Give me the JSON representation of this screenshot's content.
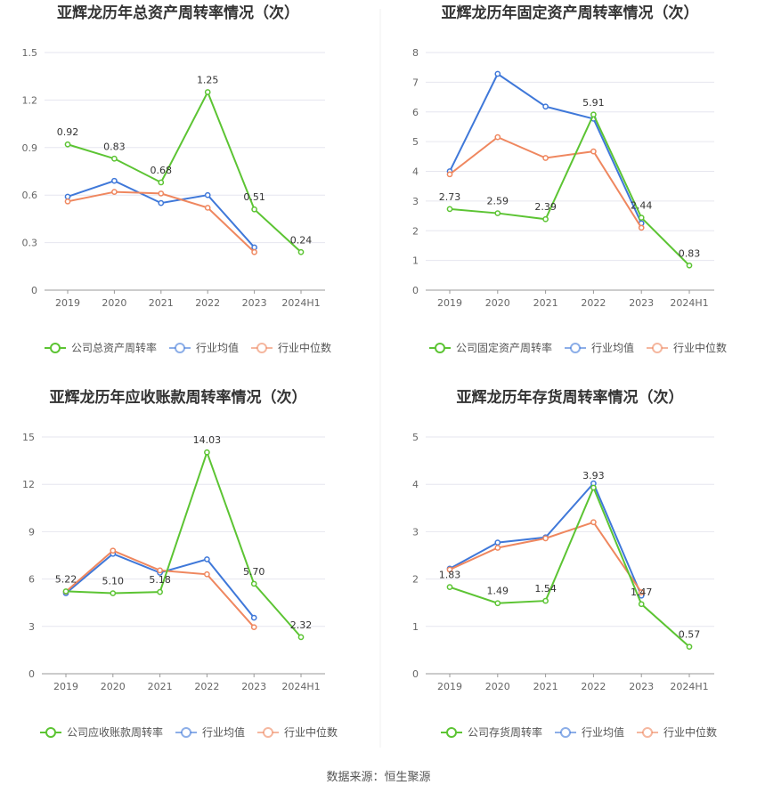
{
  "colors": {
    "company": "#5cc433",
    "avg": "#3f78d9",
    "median": "#ef875f",
    "grid": "#e6e6ef",
    "axis": "#999999"
  },
  "source_text": "数据来源：恒生聚源",
  "chart_data": [
    {
      "type": "line",
      "title": "亚辉龙历年总资产周转率情况（次）",
      "categories": [
        "2019",
        "2020",
        "2021",
        "2022",
        "2023",
        "2024H1"
      ],
      "ylim": [
        0,
        1.5
      ],
      "yticks": [
        "0",
        "0.3",
        "0.6",
        "0.9",
        "1.2",
        "1.5"
      ],
      "legend": [
        "公司总资产周转率",
        "行业均值",
        "行业中位数"
      ],
      "series": [
        {
          "name": "公司总资产周转率",
          "values": [
            0.92,
            0.83,
            0.68,
            1.25,
            0.51,
            0.24
          ],
          "labels": [
            "0.92",
            "0.83",
            "0.68",
            "1.25",
            "0.51",
            "0.24"
          ]
        },
        {
          "name": "行业均值",
          "values": [
            0.59,
            0.69,
            0.55,
            0.6,
            0.27,
            null
          ]
        },
        {
          "name": "行业中位数",
          "values": [
            0.56,
            0.62,
            0.61,
            0.52,
            0.24,
            null
          ]
        }
      ]
    },
    {
      "type": "line",
      "title": "亚辉龙历年固定资产周转率情况（次）",
      "categories": [
        "2019",
        "2020",
        "2021",
        "2022",
        "2023",
        "2024H1"
      ],
      "ylim": [
        0,
        8
      ],
      "yticks": [
        "0",
        "1",
        "2",
        "3",
        "4",
        "5",
        "6",
        "7",
        "8"
      ],
      "legend": [
        "公司固定资产周转率",
        "行业均值",
        "行业中位数"
      ],
      "series": [
        {
          "name": "公司固定资产周转率",
          "values": [
            2.73,
            2.59,
            2.39,
            5.91,
            2.44,
            0.83
          ],
          "labels": [
            "2.73",
            "2.59",
            "2.39",
            "5.91",
            "2.44",
            "0.83"
          ]
        },
        {
          "name": "行业均值",
          "values": [
            4.0,
            7.28,
            6.18,
            5.77,
            2.25,
            null
          ]
        },
        {
          "name": "行业中位数",
          "values": [
            3.9,
            5.15,
            4.45,
            4.67,
            2.1,
            null
          ]
        }
      ]
    },
    {
      "type": "line",
      "title": "亚辉龙历年应收账款周转率情况（次）",
      "categories": [
        "2019",
        "2020",
        "2021",
        "2022",
        "2023",
        "2024H1"
      ],
      "ylim": [
        0,
        15
      ],
      "yticks": [
        "0",
        "3",
        "6",
        "9",
        "12",
        "15"
      ],
      "legend": [
        "公司应收账款周转率",
        "行业均值",
        "行业中位数"
      ],
      "series": [
        {
          "name": "公司应收账款周转率",
          "values": [
            5.22,
            5.1,
            5.18,
            14.03,
            5.7,
            2.32
          ],
          "labels": [
            "5.22",
            "5.10",
            "5.18",
            "14.03",
            "5.70",
            "2.32"
          ]
        },
        {
          "name": "行业均值",
          "values": [
            5.1,
            7.6,
            6.4,
            7.25,
            3.55,
            null
          ]
        },
        {
          "name": "行业中位数",
          "values": [
            5.2,
            7.8,
            6.55,
            6.3,
            2.95,
            null
          ]
        }
      ]
    },
    {
      "type": "line",
      "title": "亚辉龙历年存货周转率情况（次）",
      "categories": [
        "2019",
        "2020",
        "2021",
        "2022",
        "2023",
        "2024H1"
      ],
      "ylim": [
        0,
        5
      ],
      "yticks": [
        "0",
        "1",
        "2",
        "3",
        "4",
        "5"
      ],
      "legend": [
        "公司存货周转率",
        "行业均值",
        "行业中位数"
      ],
      "series": [
        {
          "name": "公司存货周转率",
          "values": [
            1.83,
            1.49,
            1.54,
            3.93,
            1.47,
            0.57
          ],
          "labels": [
            "1.83",
            "1.49",
            "1.54",
            "3.93",
            "1.47",
            "0.57"
          ]
        },
        {
          "name": "行业均值",
          "values": [
            2.22,
            2.77,
            2.88,
            4.02,
            1.65,
            null
          ]
        },
        {
          "name": "行业中位数",
          "values": [
            2.2,
            2.66,
            2.86,
            3.2,
            1.72,
            null
          ]
        }
      ]
    }
  ]
}
